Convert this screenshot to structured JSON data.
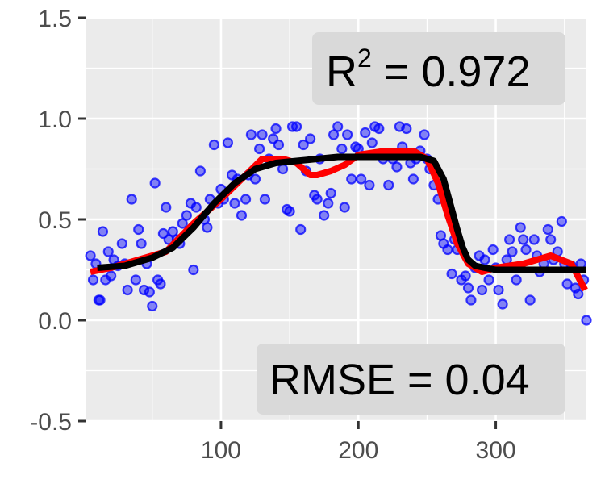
{
  "chart_data": {
    "type": "scatter",
    "xlim": [
      2,
      366
    ],
    "ylim": [
      -0.5,
      1.5
    ],
    "x_ticks": [
      100,
      200,
      300
    ],
    "x_tick_labels": [
      "100",
      "200",
      "300"
    ],
    "y_ticks": [
      -0.5,
      0.0,
      0.5,
      1.0,
      1.5
    ],
    "y_tick_labels": [
      "-0.5",
      "0.0",
      "0.5",
      "1.0",
      "1.5"
    ],
    "grid": true,
    "annotations": {
      "r2_base": "R",
      "r2_sup": "2",
      "r2_rest": " = 0.972",
      "rmse": "RMSE = 0.04"
    },
    "colors": {
      "points": "#0000ff",
      "smooth_line": "#ff0000",
      "fit_line": "#000000",
      "panel": "#ebebeb",
      "grid": "#ffffff",
      "label_box": "#d9d9d9"
    },
    "series": [
      {
        "kind": "points",
        "x": [
          5,
          7,
          9,
          11,
          12,
          14,
          16,
          18,
          20,
          22,
          25,
          28,
          30,
          32,
          35,
          38,
          40,
          42,
          44,
          46,
          48,
          50,
          52,
          54,
          56,
          58,
          60,
          62,
          65,
          68,
          70,
          72,
          75,
          78,
          80,
          82,
          85,
          88,
          90,
          92,
          95,
          98,
          100,
          102,
          105,
          108,
          110,
          112,
          115,
          118,
          120,
          122,
          125,
          128,
          130,
          132,
          135,
          138,
          140,
          142,
          145,
          148,
          150,
          152,
          155,
          158,
          160,
          162,
          165,
          168,
          170,
          172,
          175,
          178,
          180,
          182,
          185,
          188,
          190,
          192,
          195,
          198,
          200,
          202,
          205,
          208,
          210,
          212,
          215,
          218,
          220,
          222,
          225,
          228,
          230,
          232,
          235,
          238,
          240,
          242,
          245,
          248,
          250,
          252,
          255,
          258,
          260,
          262,
          265,
          268,
          270,
          272,
          275,
          278,
          280,
          282,
          285,
          288,
          290,
          292,
          295,
          298,
          300,
          302,
          305,
          308,
          310,
          312,
          315,
          318,
          320,
          322,
          325,
          328,
          330,
          332,
          335,
          338,
          340,
          342,
          345,
          348,
          350,
          352,
          355,
          358,
          360,
          362,
          364,
          366
        ],
        "y": [
          0.32,
          0.2,
          0.28,
          0.1,
          0.1,
          0.44,
          0.2,
          0.34,
          0.22,
          0.3,
          0.27,
          0.38,
          0.28,
          0.15,
          0.6,
          0.2,
          0.45,
          0.38,
          0.15,
          0.28,
          0.14,
          0.07,
          0.68,
          0.2,
          0.18,
          0.43,
          0.56,
          0.4,
          0.44,
          0.4,
          0.38,
          0.48,
          0.52,
          0.58,
          0.25,
          0.56,
          0.74,
          0.5,
          0.46,
          0.6,
          0.87,
          0.58,
          0.65,
          0.6,
          0.88,
          0.72,
          0.58,
          0.7,
          0.52,
          0.6,
          0.72,
          0.92,
          0.7,
          0.85,
          0.92,
          0.6,
          0.8,
          0.9,
          0.95,
          0.87,
          0.75,
          0.55,
          0.54,
          0.96,
          0.96,
          0.45,
          0.87,
          0.74,
          0.9,
          0.62,
          0.6,
          0.8,
          0.52,
          0.58,
          0.63,
          0.92,
          0.96,
          0.85,
          0.56,
          0.92,
          0.7,
          0.86,
          0.85,
          0.7,
          0.93,
          0.67,
          0.88,
          0.96,
          0.95,
          0.8,
          0.82,
          0.67,
          0.8,
          0.76,
          0.96,
          0.86,
          0.95,
          0.78,
          0.7,
          0.8,
          0.84,
          0.92,
          0.8,
          0.75,
          0.67,
          0.6,
          0.42,
          0.38,
          0.35,
          0.23,
          0.4,
          0.35,
          0.2,
          0.22,
          0.16,
          0.1,
          0.26,
          0.32,
          0.15,
          0.3,
          0.2,
          0.35,
          0.26,
          0.15,
          0.08,
          0.3,
          0.4,
          0.34,
          0.2,
          0.46,
          0.4,
          0.35,
          0.1,
          0.4,
          0.32,
          0.24,
          0.28,
          0.45,
          0.4,
          0.3,
          0.34,
          0.49,
          0.28,
          0.18,
          0.27,
          0.16,
          0.13,
          0.28,
          0.2,
          0.0
        ]
      },
      {
        "kind": "line",
        "x": [
          5,
          20,
          40,
          60,
          80,
          100,
          115,
          130,
          145,
          155,
          165,
          170,
          180,
          190,
          200,
          210,
          220,
          230,
          240,
          250,
          258,
          265,
          272,
          280,
          290,
          300,
          320,
          340,
          355,
          365
        ],
        "y": [
          0.24,
          0.26,
          0.3,
          0.34,
          0.48,
          0.6,
          0.7,
          0.8,
          0.8,
          0.78,
          0.72,
          0.72,
          0.74,
          0.77,
          0.82,
          0.83,
          0.84,
          0.84,
          0.84,
          0.8,
          0.68,
          0.52,
          0.38,
          0.28,
          0.24,
          0.26,
          0.28,
          0.32,
          0.28,
          0.15
        ]
      },
      {
        "kind": "line",
        "x": [
          10,
          30,
          50,
          65,
          80,
          95,
          110,
          125,
          140,
          155,
          170,
          185,
          200,
          215,
          230,
          245,
          255,
          262,
          268,
          272,
          276,
          280,
          285,
          292,
          300,
          320,
          340,
          366
        ],
        "y": [
          0.26,
          0.27,
          0.31,
          0.36,
          0.46,
          0.58,
          0.68,
          0.75,
          0.78,
          0.79,
          0.8,
          0.81,
          0.81,
          0.81,
          0.81,
          0.81,
          0.79,
          0.7,
          0.55,
          0.45,
          0.36,
          0.3,
          0.27,
          0.26,
          0.25,
          0.25,
          0.25,
          0.25
        ]
      }
    ]
  }
}
